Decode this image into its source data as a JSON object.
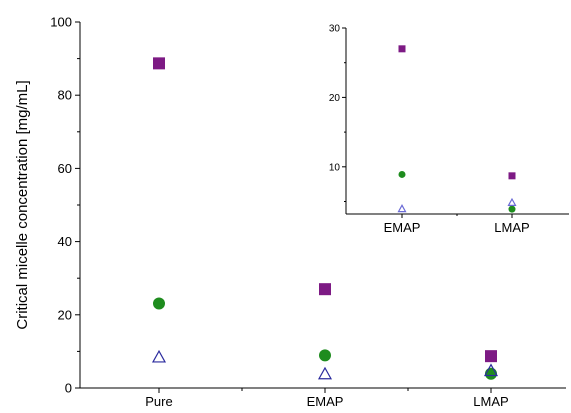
{
  "chart_data": [
    {
      "type": "scatter",
      "title": "",
      "xlabel": "",
      "ylabel": "Critical micelle concentration [mg/mL]",
      "categories": [
        "Pure",
        "EMAP",
        "LMAP"
      ],
      "ylim": [
        0,
        100
      ],
      "yticks": [
        "0",
        "20",
        "40",
        "60",
        "80",
        "100"
      ],
      "series": [
        {
          "marker": "square",
          "color": "#7d1a84",
          "values": [
            88.7,
            27.0,
            8.7
          ]
        },
        {
          "marker": "circle",
          "color": "#1e8c1e",
          "values": [
            23.1,
            8.9,
            3.9
          ]
        },
        {
          "marker": "triangle-open",
          "color": "#2b2b9e",
          "values": [
            8.6,
            4.0,
            4.9
          ]
        }
      ]
    },
    {
      "type": "scatter",
      "title": "",
      "xlabel": "",
      "ylabel": "",
      "categories": [
        "EMAP",
        "LMAP"
      ],
      "ylim": [
        3.2,
        30
      ],
      "yticks": [
        "10",
        "20",
        "30"
      ],
      "series": [
        {
          "marker": "square",
          "color": "#7d1a84",
          "values": [
            27.0,
            8.7
          ]
        },
        {
          "marker": "circle",
          "color": "#1e8c1e",
          "values": [
            8.9,
            3.9
          ]
        },
        {
          "marker": "triangle-open",
          "color": "#6b6bd6",
          "values": [
            4.0,
            4.9
          ]
        }
      ]
    }
  ]
}
